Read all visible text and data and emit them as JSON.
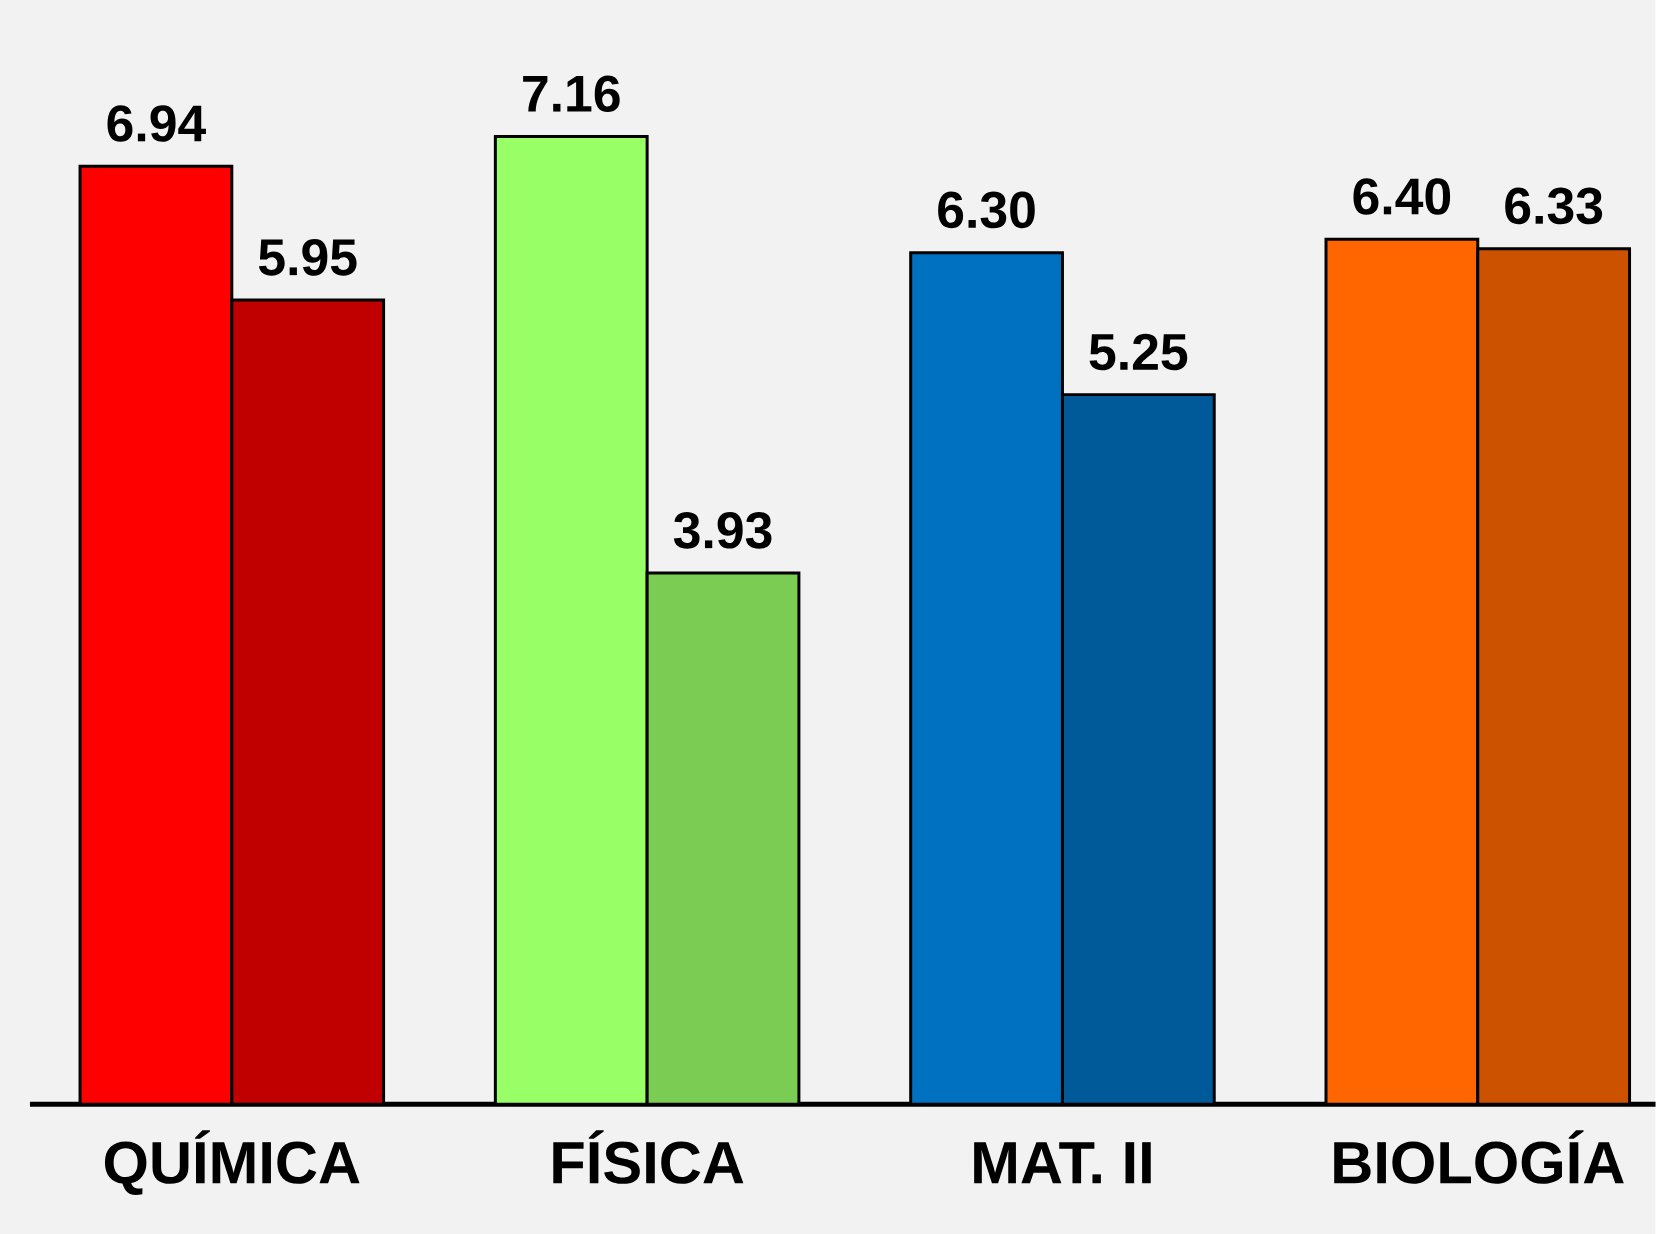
{
  "chart_data": {
    "type": "bar",
    "categories": [
      "QUÍMICA",
      "FÍSICA",
      "MAT. II",
      "BIOLOGÍA"
    ],
    "series": [
      {
        "values": [
          6.94,
          7.16,
          6.3,
          6.4
        ],
        "colors": [
          "#ff0000",
          "#99ff66",
          "#0070c0",
          "#ff6600"
        ],
        "value_labels": [
          "6.94",
          "7.16",
          "6.30",
          "6.40"
        ]
      },
      {
        "values": [
          5.95,
          3.93,
          5.25,
          6.33
        ],
        "colors": [
          "#c00000",
          "#7acc52",
          "#005a9a",
          "#cc5200"
        ],
        "value_labels": [
          "5.95",
          "3.93",
          "5.25",
          "6.33"
        ]
      }
    ]
  }
}
